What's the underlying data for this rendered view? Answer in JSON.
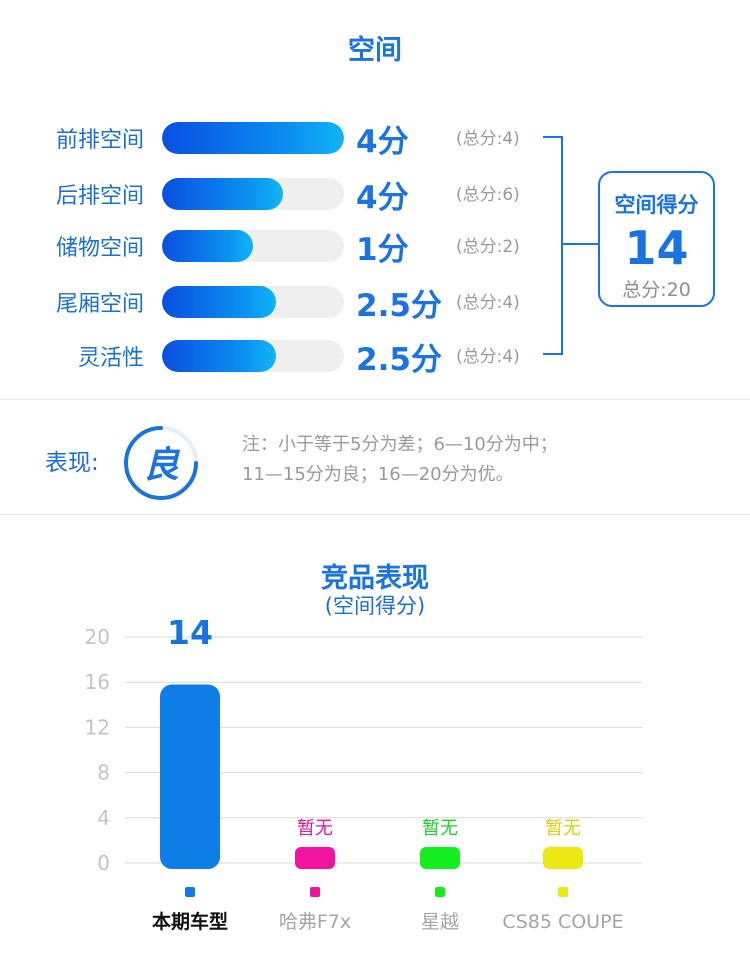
{
  "header": {
    "title": "空间"
  },
  "scores": [
    {
      "label": "前排空间",
      "score": 4,
      "score_text": "4分",
      "max": 4,
      "total_text": "(总分:4)"
    },
    {
      "label": "后排空间",
      "score": 4,
      "score_text": "4分",
      "max": 6,
      "total_text": "(总分:6)"
    },
    {
      "label": "储物空间",
      "score": 1,
      "score_text": "1分",
      "max": 2,
      "total_text": "(总分:2)"
    },
    {
      "label": "尾厢空间",
      "score": 2.5,
      "score_text": "2.5分",
      "max": 4,
      "total_text": "(总分:4)"
    },
    {
      "label": "灵活性",
      "score": 2.5,
      "score_text": "2.5分",
      "max": 4,
      "total_text": "(总分:4)"
    }
  ],
  "summary": {
    "title": "空间得分",
    "value": "14",
    "total_text": "总分:20"
  },
  "performance": {
    "label": "表现:",
    "rating": "良",
    "note_line1": "注：小于等于5分为差；6—10分为中；",
    "note_line2": "11—15分为良；16—20分为优。"
  },
  "chart_data": {
    "type": "bar",
    "title": "竞品表现",
    "subtitle": "(空间得分)",
    "categories": [
      "本期车型",
      "哈弗F7x",
      "星越",
      "CS85 COUPE"
    ],
    "values": [
      14,
      null,
      null,
      null
    ],
    "value_labels": [
      "14",
      "暂无",
      "暂无",
      "暂无"
    ],
    "colors": [
      "#0f7de6",
      "#f014a0",
      "#14ee1e",
      "#ece814"
    ],
    "label_colors": [
      "#1a73e0",
      "#e0189a",
      "#19d427",
      "#d8d20e"
    ],
    "ylim": [
      0,
      20
    ],
    "yticks": [
      0,
      4,
      8,
      12,
      16,
      20
    ],
    "grid": true
  }
}
